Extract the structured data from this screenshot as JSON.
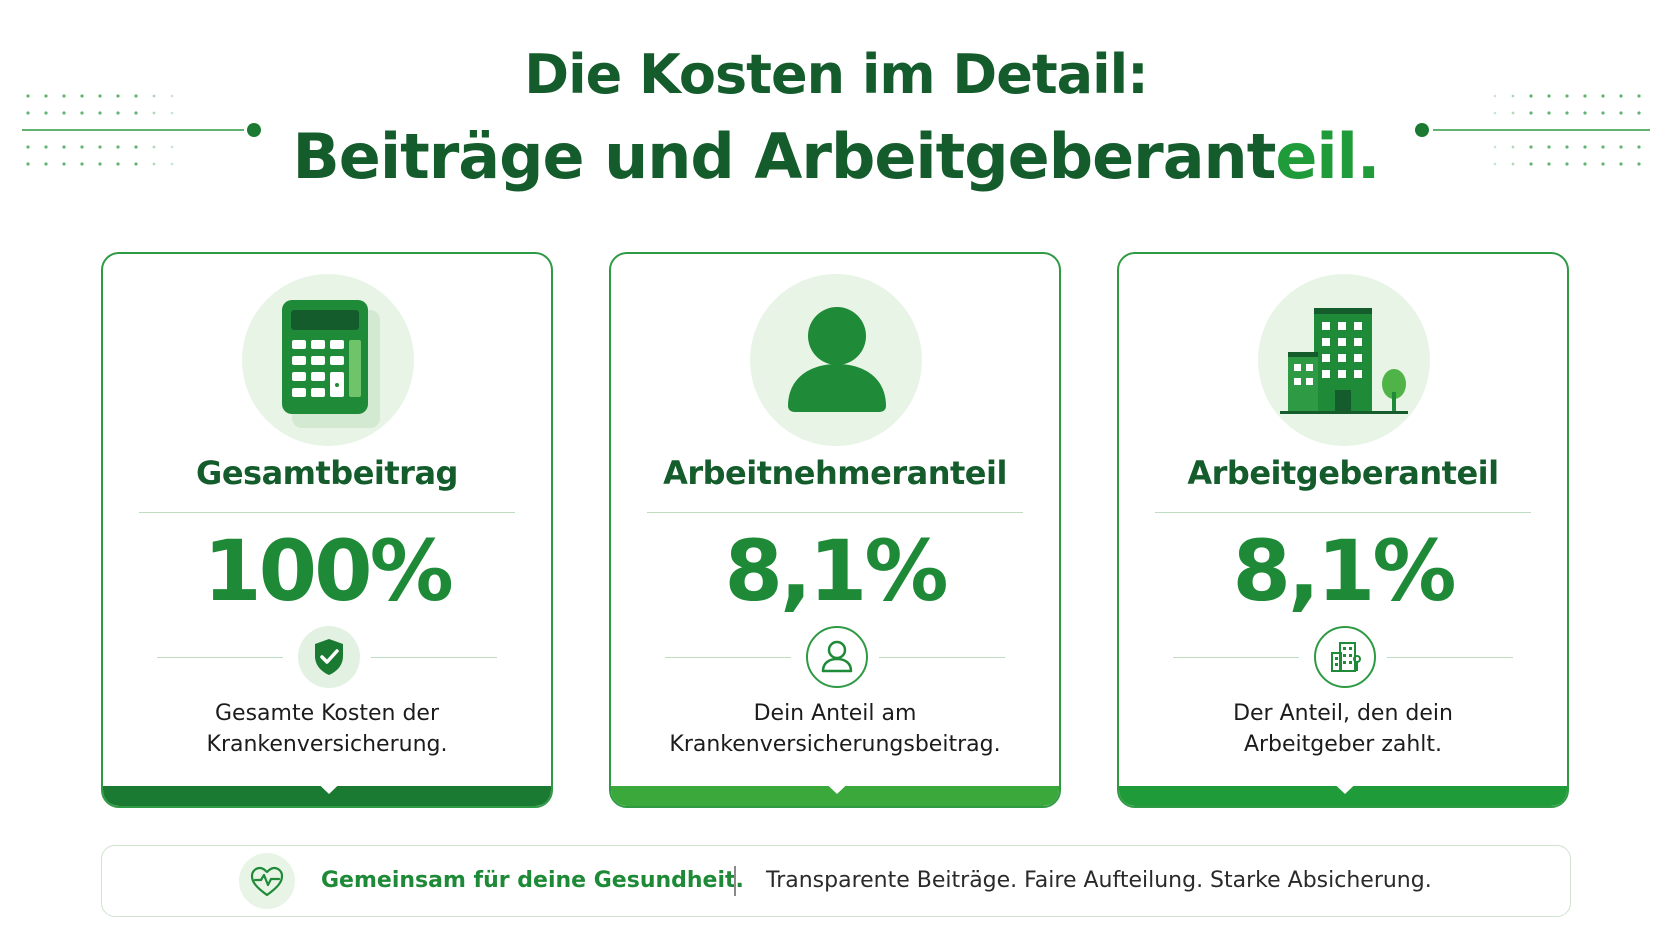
{
  "header": {
    "title_line1": "Die Kosten im Detail:",
    "title_line2_main": "Beiträge und Arbeitgeberant",
    "title_line2_accent": "eil."
  },
  "colors": {
    "dark_green": "#155c2c",
    "accent_green": "#1f9b3a",
    "light_green_bg": "#e7f4e6",
    "bar_green_1": "#1b7a31",
    "bar_green_2": "#3aa83a",
    "bar_green_3": "#1f9b3a"
  },
  "cards": [
    {
      "icon": "calculator-icon",
      "title": "Gesamtbeitrag",
      "value": "100%",
      "badge_icon": "shield-check-icon",
      "description_line1": "Gesamte Kosten der",
      "description_line2": "Krankenversicherung."
    },
    {
      "icon": "person-icon",
      "title": "Arbeitnehmeranteil",
      "value": "8,1%",
      "badge_icon": "person-outline-icon",
      "description_line1": "Dein Anteil am",
      "description_line2": "Krankenversicherungsbeitrag."
    },
    {
      "icon": "office-building-icon",
      "title": "Arbeitgeberanteil",
      "value": "8,1%",
      "badge_icon": "building-outline-icon",
      "description_line1": "Der Anteil, den dein",
      "description_line2": "Arbeitgeber zahlt."
    }
  ],
  "footer": {
    "icon": "heart-pulse-icon",
    "slogan": "Gemeinsam für deine Gesundheit.",
    "tagline": "Transparente Beiträge. Faire Aufteilung. Starke Absicherung."
  }
}
